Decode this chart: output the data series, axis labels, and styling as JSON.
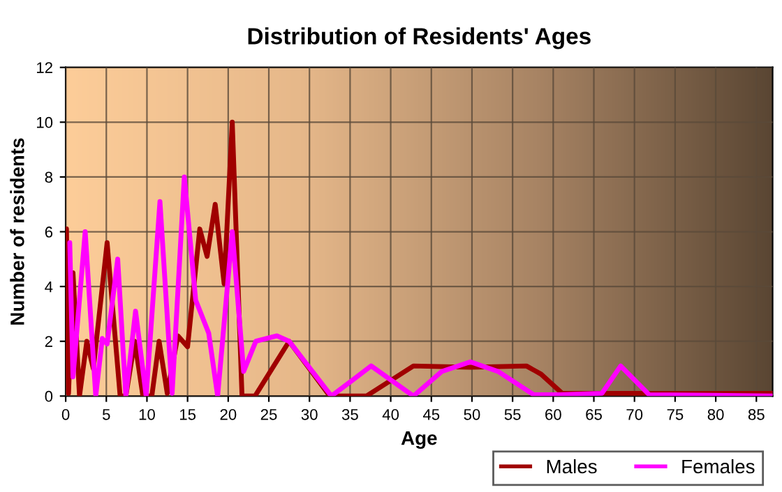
{
  "chart_data": {
    "type": "line",
    "title": "Distribution of Residents' Ages",
    "xlabel": "Age",
    "ylabel": "Number of residents",
    "xlim": [
      0,
      87
    ],
    "xticks": [
      0,
      5,
      10,
      15,
      20,
      25,
      30,
      35,
      40,
      45,
      50,
      55,
      60,
      65,
      70,
      75,
      80,
      85
    ],
    "ylim": [
      0,
      12
    ],
    "yticks": [
      0,
      2,
      4,
      6,
      8,
      10,
      12
    ],
    "grid": true,
    "legend": "bottom right",
    "line_style": "solid",
    "marker": "none",
    "series": [
      {
        "name": "Males",
        "color": "#a00000",
        "x": [
          0.1,
          0.35,
          0.9,
          1.7,
          2.6,
          3.4,
          5.1,
          6.7,
          7.4,
          8.5,
          9.5,
          10.6,
          11.5,
          12.5,
          13.8,
          15,
          16.5,
          17.4,
          18.4,
          19.5,
          20.5,
          21.7,
          23.3,
          27.5,
          32.5,
          37,
          42.8,
          49.8,
          56.7,
          58.5,
          61.1,
          87
        ],
        "values": [
          6.1,
          0.1,
          4.5,
          0,
          2.0,
          1.0,
          5.6,
          0,
          0,
          2.0,
          0,
          0,
          2.0,
          0.1,
          2.2,
          1.8,
          6.1,
          5.1,
          7.0,
          4.1,
          10.0,
          0,
          0,
          2.0,
          0,
          0,
          1.1,
          1.05,
          1.1,
          0.8,
          0.1,
          0.1
        ]
      },
      {
        "name": "Females",
        "color": "#ff00ff",
        "x": [
          0.5,
          0.9,
          2.4,
          3.7,
          4.5,
          5.1,
          6.4,
          7.4,
          8.6,
          9.9,
          11.6,
          13.1,
          14.6,
          16,
          17.6,
          18.7,
          20.5,
          21.9,
          23.4,
          26,
          27.5,
          32.7,
          37.6,
          42.8,
          46.3,
          49.8,
          53.2,
          57.6,
          60.8,
          66,
          68.3,
          71.8,
          87
        ],
        "values": [
          5.6,
          0.7,
          6.0,
          0,
          2.1,
          1.9,
          5.0,
          0,
          3.1,
          0,
          7.1,
          0.1,
          8.0,
          3.5,
          2.3,
          0,
          6.0,
          0.9,
          2.0,
          2.2,
          2.0,
          0,
          1.1,
          0,
          0.9,
          1.25,
          0.9,
          0.05,
          0.05,
          0.1,
          1.1,
          0.05,
          0
        ]
      }
    ]
  }
}
